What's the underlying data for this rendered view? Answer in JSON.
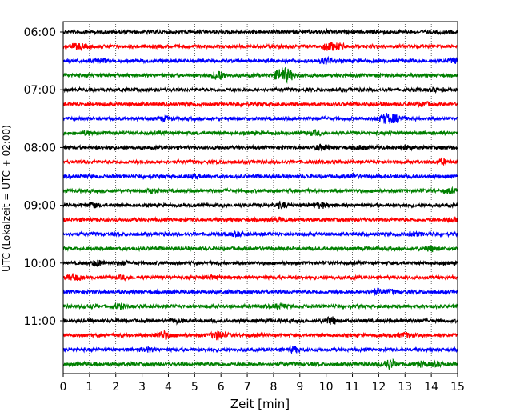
{
  "chart_data": {
    "type": "line",
    "title": "",
    "xlabel": "Zeit  [min]",
    "ylabel": "UTC (Lokalzeit = UTC + 02:00)",
    "xlim": [
      0,
      15
    ],
    "x_ticks": [
      0,
      1,
      2,
      3,
      4,
      5,
      6,
      7,
      8,
      9,
      10,
      11,
      12,
      13,
      14,
      15
    ],
    "y_ticks": [
      "06:00",
      "07:00",
      "08:00",
      "09:00",
      "10:00",
      "11:00"
    ],
    "grid": "vertical dotted at each minute",
    "trace_colors": [
      "#000000",
      "#ff0000",
      "#0000ff",
      "#008000"
    ],
    "traces": [
      {
        "start": "06:00",
        "events": [
          [
            10.0,
            1.5
          ]
        ]
      },
      {
        "start": "06:15",
        "events": [
          [
            0.6,
            3
          ],
          [
            10.1,
            4
          ],
          [
            10.5,
            2
          ]
        ]
      },
      {
        "start": "06:30",
        "events": [
          [
            1.4,
            2
          ],
          [
            10.0,
            3
          ],
          [
            14.9,
            2
          ]
        ]
      },
      {
        "start": "06:45",
        "events": [
          [
            5.9,
            5
          ],
          [
            8.3,
            7
          ],
          [
            8.6,
            4
          ]
        ]
      },
      {
        "start": "07:00",
        "events": [
          [
            14.2,
            1.5
          ]
        ]
      },
      {
        "start": "07:15",
        "events": [
          [
            13.7,
            1.5
          ]
        ]
      },
      {
        "start": "07:30",
        "events": [
          [
            12.3,
            5
          ],
          [
            12.7,
            3
          ],
          [
            3.9,
            1.5
          ]
        ]
      },
      {
        "start": "07:45",
        "events": [
          [
            9.6,
            2
          ],
          [
            0.9,
            1.5
          ]
        ]
      },
      {
        "start": "08:00",
        "events": [
          [
            9.8,
            2.5
          ],
          [
            11.3,
            1.5
          ],
          [
            13.0,
            1.5
          ]
        ]
      },
      {
        "start": "08:15",
        "events": [
          [
            14.4,
            2
          ]
        ]
      },
      {
        "start": "08:30",
        "events": [
          [
            5.0,
            1.5
          ],
          [
            11.0,
            1.5
          ]
        ]
      },
      {
        "start": "08:45",
        "events": [
          [
            3.4,
            2
          ],
          [
            14.7,
            2
          ]
        ]
      },
      {
        "start": "09:00",
        "events": [
          [
            1.1,
            2
          ],
          [
            8.3,
            2.5
          ],
          [
            9.8,
            2.5
          ]
        ]
      },
      {
        "start": "09:15",
        "events": [
          [
            8.2,
            1.5
          ],
          [
            14.8,
            2
          ]
        ]
      },
      {
        "start": "09:30",
        "events": [
          [
            6.6,
            1.5
          ],
          [
            13.4,
            1.5
          ]
        ]
      },
      {
        "start": "09:45",
        "events": [
          [
            14.0,
            2.5
          ]
        ]
      },
      {
        "start": "10:00",
        "events": [
          [
            1.3,
            3
          ],
          [
            2.3,
            1.5
          ]
        ]
      },
      {
        "start": "10:15",
        "events": [
          [
            0.4,
            3
          ],
          [
            2.3,
            1.5
          ],
          [
            5.7,
            1.5
          ]
        ]
      },
      {
        "start": "10:30",
        "events": [
          [
            11.9,
            3
          ],
          [
            12.5,
            1.5
          ]
        ]
      },
      {
        "start": "10:45",
        "events": [
          [
            1.0,
            1.5
          ],
          [
            2.1,
            2
          ],
          [
            8.2,
            2
          ]
        ]
      },
      {
        "start": "11:00",
        "events": [
          [
            10.2,
            3.5
          ],
          [
            4.3,
            1.5
          ]
        ]
      },
      {
        "start": "11:15",
        "events": [
          [
            3.8,
            4
          ],
          [
            5.9,
            4.5
          ],
          [
            13.0,
            2
          ]
        ]
      },
      {
        "start": "11:30",
        "events": [
          [
            3.2,
            2
          ],
          [
            8.8,
            2.5
          ]
        ]
      },
      {
        "start": "11:45",
        "events": [
          [
            12.4,
            5
          ],
          [
            13.6,
            2
          ],
          [
            14.2,
            2
          ]
        ]
      }
    ]
  }
}
